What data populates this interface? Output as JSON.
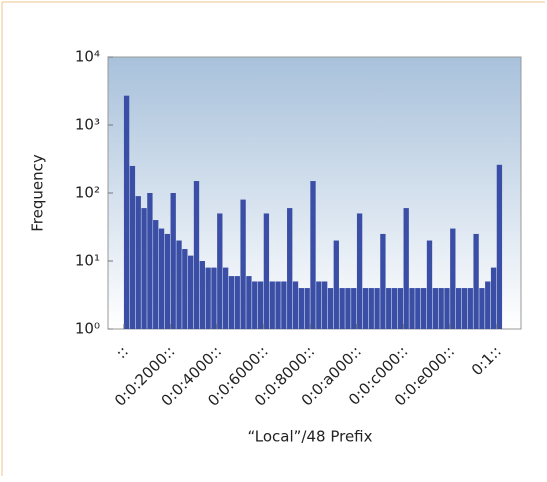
{
  "chart_data": {
    "type": "histogram",
    "xlabel": "“Local”/48 Prefix",
    "ylabel": "Frequency",
    "bins": [
      0,
      1024,
      2048,
      3072,
      4096,
      5120,
      6144,
      7168,
      8192,
      9216,
      10240,
      11264,
      12288,
      13312,
      14336,
      15360,
      16384,
      17408,
      18432,
      19456,
      20480,
      21504,
      22528,
      23552,
      24576,
      25600,
      26624,
      27648,
      28672,
      29696,
      30720,
      31744,
      32768,
      33792,
      34816,
      35840,
      36864,
      37888,
      38912,
      39936,
      40960,
      41984,
      43008,
      44032,
      45056,
      46080,
      47104,
      48128,
      49152,
      50176,
      51200,
      52224,
      53248,
      54272,
      55296,
      56320,
      57344,
      58368,
      59392,
      60416,
      61440,
      62464,
      63488,
      64512,
      65536,
      66560
    ],
    "values": [
      2700,
      250,
      90,
      60,
      100,
      40,
      30,
      25,
      100,
      20,
      15,
      12,
      150,
      10,
      8,
      8,
      50,
      8,
      6,
      6,
      80,
      6,
      5,
      5,
      50,
      5,
      5,
      5,
      60,
      5,
      4,
      4,
      150,
      5,
      5,
      4,
      20,
      4,
      4,
      4,
      50,
      4,
      4,
      4,
      25,
      4,
      4,
      4,
      60,
      4,
      4,
      4,
      20,
      4,
      4,
      4,
      30,
      4,
      4,
      4,
      25,
      4,
      5,
      8,
      260
    ],
    "color": "#3a4ea6",
    "xlim": [
      -2800,
      69800
    ],
    "xticks": [
      {
        "value": 0,
        "label": "::"
      },
      {
        "value": 8192,
        "label": "0:0:2000::"
      },
      {
        "value": 16384,
        "label": "0:0:4000::"
      },
      {
        "value": 24576,
        "label": "0:0:6000::"
      },
      {
        "value": 32768,
        "label": "0:0:8000::"
      },
      {
        "value": 40960,
        "label": "0:0:a000::"
      },
      {
        "value": 49152,
        "label": "0:0:c000::"
      },
      {
        "value": 57344,
        "label": "0:0:e000::"
      },
      {
        "value": 65536,
        "label": "0:1::"
      }
    ],
    "ylim": [
      1,
      10000
    ],
    "yscale": "log",
    "yticks": [
      {
        "value": 1,
        "label": "10⁰"
      },
      {
        "value": 10,
        "label": "10¹"
      },
      {
        "value": 100,
        "label": "10²"
      },
      {
        "value": 1000,
        "label": "10³"
      },
      {
        "value": 10000,
        "label": "10⁴"
      }
    ]
  }
}
